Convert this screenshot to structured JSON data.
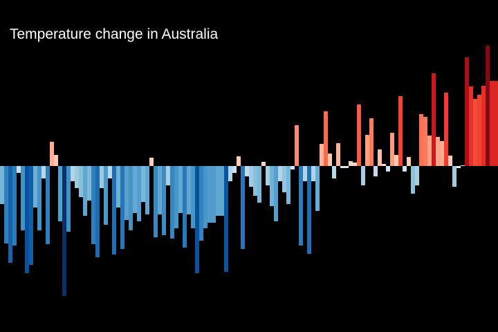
{
  "chart_data": {
    "type": "bar",
    "title": "Temperature change in Australia",
    "values": [
      -0.55,
      -1.12,
      -1.4,
      -1.15,
      -0.1,
      -0.93,
      -1.55,
      -1.43,
      -0.6,
      -0.93,
      -0.18,
      -1.13,
      0.35,
      0.16,
      -0.8,
      -1.88,
      -0.95,
      -0.22,
      -0.32,
      -0.45,
      -0.72,
      -0.5,
      -1.13,
      -1.32,
      -0.32,
      -0.85,
      -0.18,
      -1.28,
      -0.6,
      -1.2,
      -0.78,
      -0.93,
      -0.68,
      -0.8,
      -0.52,
      -0.7,
      0.12,
      -1.03,
      -0.7,
      -1.0,
      -0.28,
      -1.05,
      -0.9,
      -0.68,
      -1.18,
      -0.7,
      -0.9,
      -1.55,
      -1.08,
      -0.9,
      -0.82,
      -0.82,
      -0.72,
      -0.72,
      -1.53,
      -0.22,
      -0.1,
      0.14,
      -1.2,
      -0.15,
      -0.3,
      -0.43,
      -0.53,
      0.06,
      -0.28,
      -0.58,
      -0.8,
      -0.22,
      -0.38,
      -0.55,
      -0.05,
      0.59,
      -1.15,
      -0.22,
      -1.27,
      -0.22,
      -0.65,
      0.32,
      0.79,
      0.18,
      -0.18,
      0.33,
      -0.03,
      -0.03,
      0.07,
      0.05,
      0.89,
      -0.28,
      0.45,
      0.69,
      -0.15,
      0.24,
      0.03,
      -0.08,
      0.48,
      0.16,
      1.01,
      -0.08,
      0.13,
      -0.4,
      -0.28,
      0.75,
      0.71,
      0.44,
      1.34,
      0.42,
      0.36,
      1.06,
      0.15,
      -0.3,
      -0.03,
      0.01,
      1.57,
      1.15,
      0.97,
      1.03,
      1.16,
      1.74,
      1.23,
      1.23
    ],
    "ylim": [
      -2.4,
      2.4
    ]
  }
}
